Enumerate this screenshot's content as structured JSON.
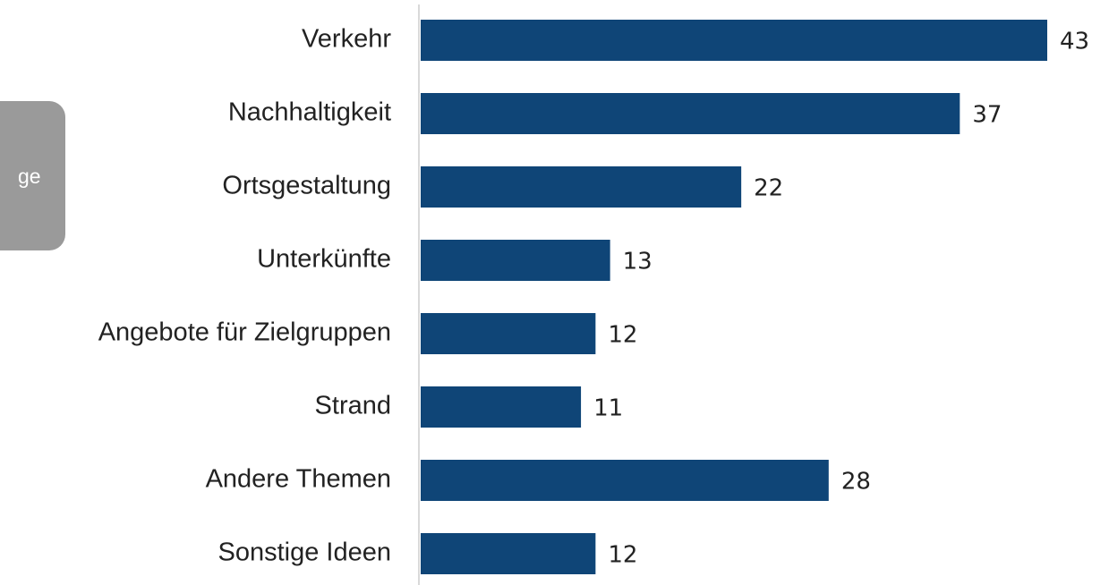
{
  "chart_data": {
    "type": "barh",
    "categories": [
      "Verkehr",
      "Nachhaltigkeit",
      "Ortsgestaltung",
      "Unterkünfte",
      "Angebote für Zielgruppen",
      "Strand",
      "Andere Themen",
      "Sonstige Ideen"
    ],
    "values": [
      43,
      37,
      22,
      13,
      12,
      11,
      28,
      12
    ],
    "color": "#0f4577",
    "annotation": "ge"
  }
}
